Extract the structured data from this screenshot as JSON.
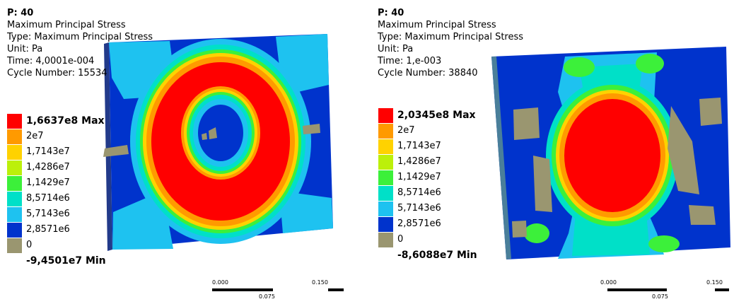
{
  "palette": {
    "red": "#ff0000",
    "orange": "#ff9a00",
    "yellow": "#ffd200",
    "lime": "#bcf00a",
    "green": "#3cf03a",
    "cyan": "#00e0c8",
    "lightblue": "#1ec2f0",
    "skyblue": "#00a0ff",
    "blue": "#0033cc",
    "grey": "#9a9670"
  },
  "panels": [
    {
      "info": {
        "title": "P: 40",
        "result": "Maximum Principal Stress",
        "type": "Type: Maximum Principal Stress",
        "unit": "Unit: Pa",
        "time": "Time: 4,0001e-004",
        "cycle": "Cycle Number: 15534"
      },
      "legend": [
        {
          "label": "1,6637e8 Max",
          "color": "#ff0000",
          "bold": true
        },
        {
          "label": "2e7",
          "color": "#ff9a00",
          "bold": false
        },
        {
          "label": "1,7143e7",
          "color": "#ffd200",
          "bold": false
        },
        {
          "label": "1,4286e7",
          "color": "#bcf00a",
          "bold": false
        },
        {
          "label": "1,1429e7",
          "color": "#3cf03a",
          "bold": false
        },
        {
          "label": "8,5714e6",
          "color": "#00e0c8",
          "bold": false
        },
        {
          "label": "5,7143e6",
          "color": "#1ec2f0",
          "bold": false
        },
        {
          "label": "2,8571e6",
          "color": "#0033cc",
          "bold": false
        },
        {
          "label": "0",
          "color": "#9a9670",
          "bold": false
        },
        {
          "label": "-9,4501e7 Min",
          "color": "#ffffff",
          "bold": true
        }
      ],
      "scale": {
        "start": "0.000",
        "mid": "0.075",
        "end": "0.150"
      }
    },
    {
      "info": {
        "title": "P: 40",
        "result": "Maximum Principal Stress",
        "type": "Type: Maximum Principal Stress",
        "unit": "Unit: Pa",
        "time": "Time: 1,e-003",
        "cycle": "Cycle Number: 38840"
      },
      "legend": [
        {
          "label": "2,0345e8 Max",
          "color": "#ff0000",
          "bold": true
        },
        {
          "label": "2e7",
          "color": "#ff9a00",
          "bold": false
        },
        {
          "label": "1,7143e7",
          "color": "#ffd200",
          "bold": false
        },
        {
          "label": "1,4286e7",
          "color": "#bcf00a",
          "bold": false
        },
        {
          "label": "1,1429e7",
          "color": "#3cf03a",
          "bold": false
        },
        {
          "label": "8,5714e6",
          "color": "#00e0c8",
          "bold": false
        },
        {
          "label": "5,7143e6",
          "color": "#1ec2f0",
          "bold": false
        },
        {
          "label": "2,8571e6",
          "color": "#0033cc",
          "bold": false
        },
        {
          "label": "0",
          "color": "#9a9670",
          "bold": false
        },
        {
          "label": "-8,6088e7 Min",
          "color": "#ffffff",
          "bold": true
        }
      ],
      "scale": {
        "start": "0.000",
        "mid": "0.075",
        "end": "0.150"
      }
    }
  ]
}
